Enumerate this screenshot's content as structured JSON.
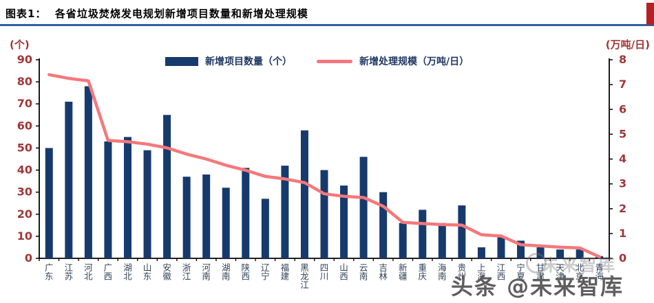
{
  "header": {
    "title": "图表1：  各省垃圾焚烧发电规划新增项目数量和新增处理规模"
  },
  "chart_data": {
    "type": "bar",
    "categories": [
      "广东",
      "江苏",
      "河北",
      "广西",
      "湖北",
      "山东",
      "安徽",
      "浙江",
      "河南",
      "湖南",
      "陕西",
      "辽宁",
      "福建",
      "黑龙江",
      "四川",
      "山西",
      "云南",
      "吉林",
      "新疆",
      "重庆",
      "海南",
      "贵州",
      "上海",
      "江西",
      "宁夏",
      "甘肃",
      "天津",
      "北京",
      "青海"
    ],
    "series": [
      {
        "name": "新增项目数量（个）",
        "type": "bar",
        "axis": "left",
        "color": "#173a6d",
        "values": [
          50,
          71,
          78,
          53,
          55,
          49,
          65,
          37,
          38,
          32,
          41,
          27,
          42,
          58,
          40,
          33,
          46,
          30,
          16,
          22,
          16,
          24,
          5,
          10,
          8,
          5,
          4,
          4,
          1
        ]
      },
      {
        "name": "新增处理规模（万吨/日）",
        "type": "line",
        "axis": "right",
        "color": "#f4787b",
        "values": [
          7.4,
          7.25,
          7.15,
          4.75,
          4.7,
          4.6,
          4.45,
          4.2,
          4.0,
          3.75,
          3.55,
          3.3,
          3.2,
          3.05,
          2.6,
          2.5,
          2.45,
          2.1,
          1.45,
          1.4,
          1.36,
          1.34,
          0.95,
          0.9,
          0.55,
          0.5,
          0.45,
          0.42,
          0.06
        ]
      }
    ],
    "left_axis": {
      "unit": "(个)",
      "min": 0,
      "max": 90,
      "step": 10,
      "ticks": [
        0,
        10,
        20,
        30,
        40,
        50,
        60,
        70,
        80,
        90
      ]
    },
    "right_axis": {
      "unit": "(万吨/日)",
      "min": 0,
      "max": 8,
      "step": 1,
      "ticks": [
        0,
        1,
        2,
        3,
        4,
        5,
        6,
        7,
        8
      ]
    },
    "legend_position": "top-center",
    "grid": false
  },
  "watermark": {
    "text": "头条 @未来智库",
    "echo": "未来智库"
  },
  "colors": {
    "title_underline": "#2e5fa3",
    "corner_stripe": "#b52025",
    "tick_label": "#a03636",
    "category_label": "#2f4257",
    "legend_text": "#1f3864",
    "axis": "#000000"
  }
}
